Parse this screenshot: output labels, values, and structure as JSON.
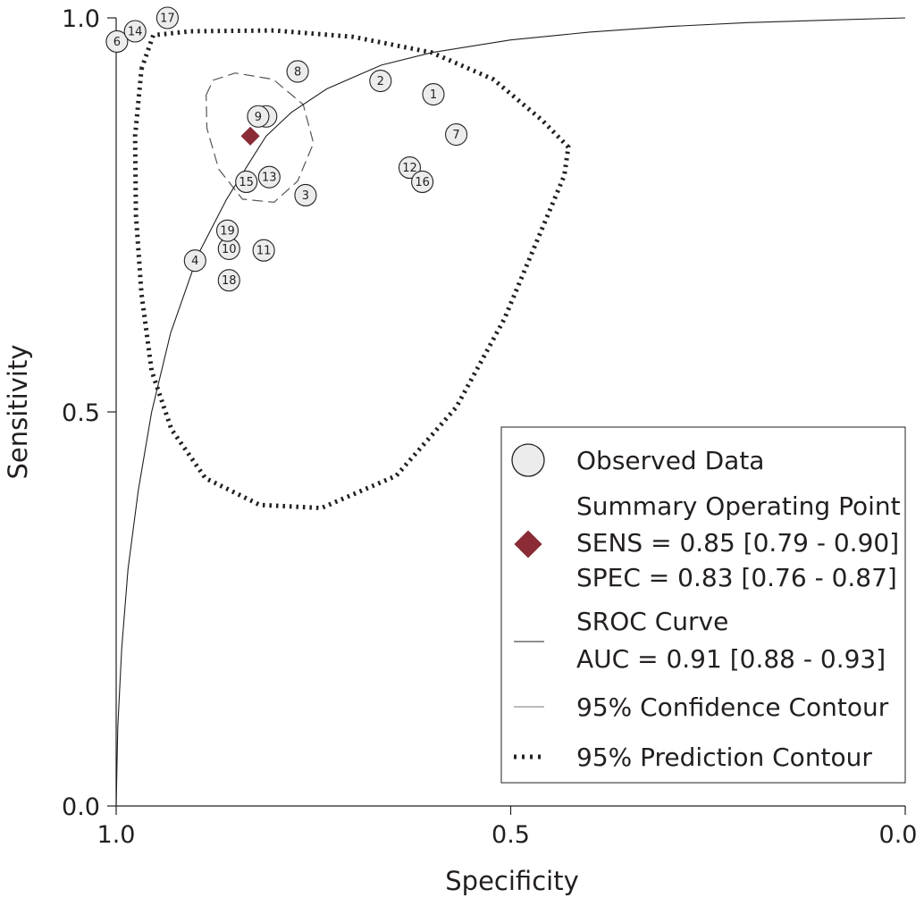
{
  "chart_data": {
    "type": "scatter",
    "xlabel": "Specificity",
    "ylabel": "Sensitivity",
    "xlim": [
      1.0,
      0.0
    ],
    "ylim": [
      0.0,
      1.0
    ],
    "x_axis_reversed": true,
    "grid": false,
    "legend_position": "bottom-right",
    "x_ticks": [
      {
        "value": 1.0,
        "label": "1.0"
      },
      {
        "value": 0.5,
        "label": "0.5"
      },
      {
        "value": 0.0,
        "label": "0.0"
      }
    ],
    "y_ticks": [
      {
        "value": 0.0,
        "label": "0.0"
      },
      {
        "value": 0.5,
        "label": "0.5"
      },
      {
        "value": 1.0,
        "label": "1.0"
      }
    ],
    "observed": [
      {
        "id": "1",
        "spec": 0.598,
        "sens": 0.903
      },
      {
        "id": "2",
        "spec": 0.665,
        "sens": 0.92
      },
      {
        "id": "3",
        "spec": 0.76,
        "sens": 0.775
      },
      {
        "id": "4",
        "spec": 0.9,
        "sens": 0.692
      },
      {
        "id": "5",
        "spec": 0.81,
        "sens": 0.875
      },
      {
        "id": "6",
        "spec": 0.999,
        "sens": 0.97
      },
      {
        "id": "7",
        "spec": 0.569,
        "sens": 0.852
      },
      {
        "id": "8",
        "spec": 0.77,
        "sens": 0.932
      },
      {
        "id": "9",
        "spec": 0.82,
        "sens": 0.875
      },
      {
        "id": "10",
        "spec": 0.857,
        "sens": 0.707
      },
      {
        "id": "11",
        "spec": 0.813,
        "sens": 0.705
      },
      {
        "id": "12",
        "spec": 0.628,
        "sens": 0.81
      },
      {
        "id": "13",
        "spec": 0.806,
        "sens": 0.798
      },
      {
        "id": "14",
        "spec": 0.976,
        "sens": 0.983
      },
      {
        "id": "15",
        "spec": 0.835,
        "sens": 0.792
      },
      {
        "id": "16",
        "spec": 0.612,
        "sens": 0.792
      },
      {
        "id": "17",
        "spec": 0.935,
        "sens": 1.0
      },
      {
        "id": "18",
        "spec": 0.857,
        "sens": 0.667
      },
      {
        "id": "19",
        "spec": 0.859,
        "sens": 0.73
      }
    ],
    "summary_point": {
      "spec": 0.83,
      "sens": 0.85
    },
    "sroc_curve": [
      {
        "spec": 1.0,
        "sens": 0.0
      },
      {
        "spec": 0.998,
        "sens": 0.1
      },
      {
        "spec": 0.993,
        "sens": 0.2
      },
      {
        "spec": 0.985,
        "sens": 0.3
      },
      {
        "spec": 0.972,
        "sens": 0.4
      },
      {
        "spec": 0.955,
        "sens": 0.5
      },
      {
        "spec": 0.931,
        "sens": 0.6
      },
      {
        "spec": 0.896,
        "sens": 0.7
      },
      {
        "spec": 0.86,
        "sens": 0.77
      },
      {
        "spec": 0.829,
        "sens": 0.82
      },
      {
        "spec": 0.81,
        "sens": 0.85
      },
      {
        "spec": 0.778,
        "sens": 0.88
      },
      {
        "spec": 0.733,
        "sens": 0.91
      },
      {
        "spec": 0.664,
        "sens": 0.94
      },
      {
        "spec": 0.6,
        "sens": 0.956
      },
      {
        "spec": 0.5,
        "sens": 0.972
      },
      {
        "spec": 0.4,
        "sens": 0.982
      },
      {
        "spec": 0.3,
        "sens": 0.989
      },
      {
        "spec": 0.2,
        "sens": 0.994
      },
      {
        "spec": 0.1,
        "sens": 0.997
      },
      {
        "spec": 0.0,
        "sens": 1.0
      }
    ],
    "confidence_contour": [
      {
        "spec": 0.886,
        "sens": 0.902
      },
      {
        "spec": 0.877,
        "sens": 0.921
      },
      {
        "spec": 0.849,
        "sens": 0.93
      },
      {
        "spec": 0.801,
        "sens": 0.922
      },
      {
        "spec": 0.763,
        "sens": 0.89
      },
      {
        "spec": 0.75,
        "sens": 0.841
      },
      {
        "spec": 0.77,
        "sens": 0.793
      },
      {
        "spec": 0.8,
        "sens": 0.766
      },
      {
        "spec": 0.84,
        "sens": 0.77
      },
      {
        "spec": 0.87,
        "sens": 0.808
      },
      {
        "spec": 0.885,
        "sens": 0.86
      },
      {
        "spec": 0.886,
        "sens": 0.902
      }
    ],
    "prediction_contour": [
      {
        "spec": 0.968,
        "sens": 0.935
      },
      {
        "spec": 0.953,
        "sens": 0.978
      },
      {
        "spec": 0.906,
        "sens": 0.983
      },
      {
        "spec": 0.8,
        "sens": 0.984
      },
      {
        "spec": 0.7,
        "sens": 0.976
      },
      {
        "spec": 0.6,
        "sens": 0.956
      },
      {
        "spec": 0.522,
        "sens": 0.922
      },
      {
        "spec": 0.46,
        "sens": 0.87
      },
      {
        "spec": 0.427,
        "sens": 0.836
      },
      {
        "spec": 0.432,
        "sens": 0.8
      },
      {
        "spec": 0.508,
        "sens": 0.618
      },
      {
        "spec": 0.569,
        "sens": 0.506
      },
      {
        "spec": 0.645,
        "sens": 0.419
      },
      {
        "spec": 0.74,
        "sens": 0.378
      },
      {
        "spec": 0.818,
        "sens": 0.382
      },
      {
        "spec": 0.887,
        "sens": 0.416
      },
      {
        "spec": 0.93,
        "sens": 0.478
      },
      {
        "spec": 0.955,
        "sens": 0.552
      },
      {
        "spec": 0.968,
        "sens": 0.65
      },
      {
        "spec": 0.975,
        "sens": 0.75
      },
      {
        "spec": 0.976,
        "sens": 0.85
      },
      {
        "spec": 0.968,
        "sens": 0.935
      }
    ],
    "colors": {
      "summary": "#8b2c35",
      "marker_fill": "#ececec",
      "line": "#231f20"
    }
  },
  "legend": {
    "observed": "Observed Data",
    "summary_title": "Summary Operating Point",
    "sens": "SENS = 0.85 [0.79 - 0.90]",
    "spec": "SPEC = 0.83 [0.76 - 0.87]",
    "sroc_title": "SROC Curve",
    "auc": "AUC = 0.91 [0.88 - 0.93]",
    "confidence": "95% Confidence Contour",
    "prediction": "95% Prediction Contour"
  }
}
